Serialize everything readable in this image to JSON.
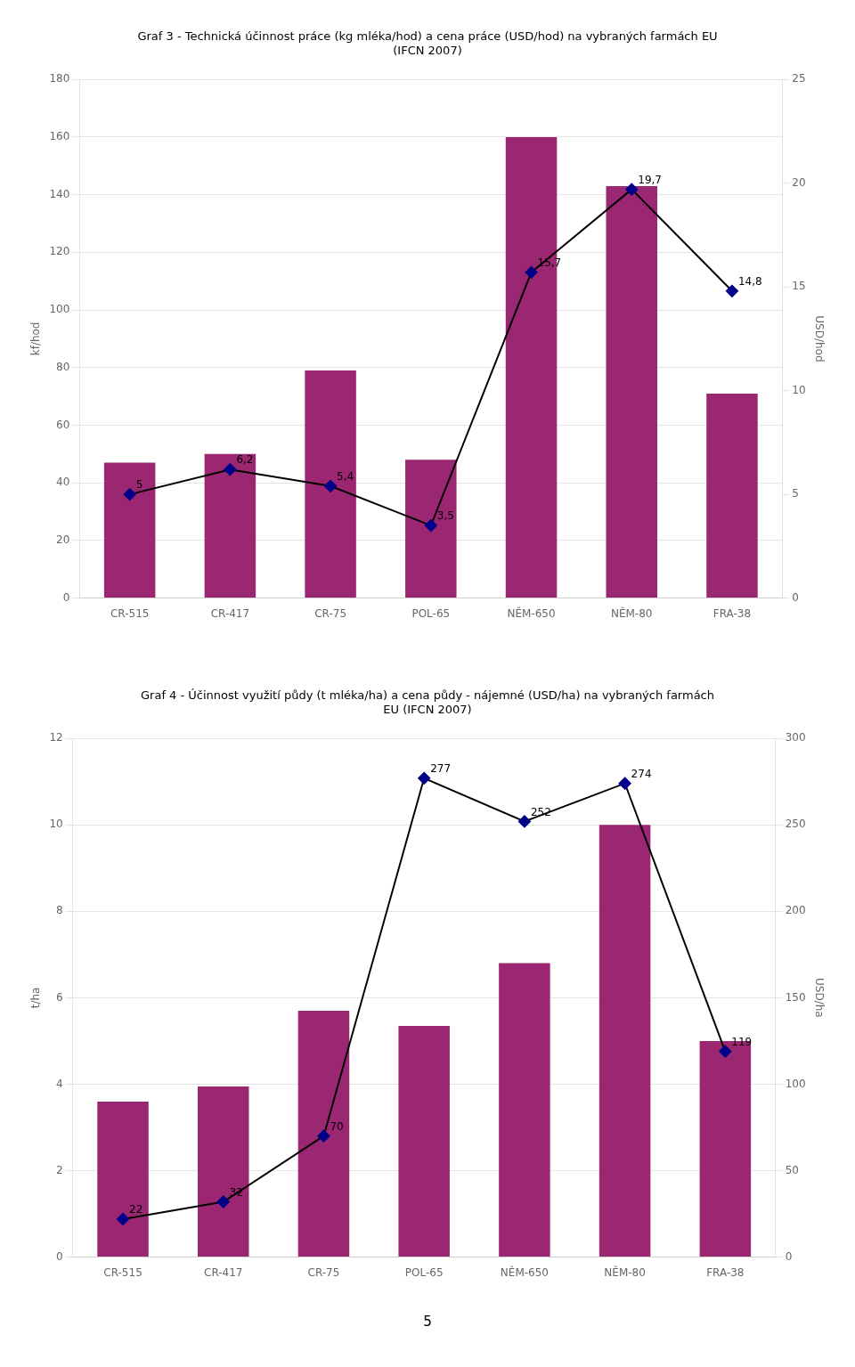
{
  "chart_data": [
    {
      "type": "bar",
      "title": "Graf 3 - Technická účinnost práce (kg mléka/hod) a cena práce (USD/hod) na vybraných farmách EU\n(IFCN 2007)",
      "categories": [
        "CR-515",
        "CR-417",
        "CR-75",
        "POL-65",
        "NĚM-650",
        "NĚM-80",
        "FRA-38"
      ],
      "ylabel": "kf/hod",
      "y2label": "USD/hod",
      "ylim": [
        0,
        180
      ],
      "yticks": [
        0,
        20,
        40,
        60,
        80,
        100,
        120,
        140,
        160,
        180
      ],
      "y2lim": [
        0,
        25
      ],
      "y2ticks": [
        0,
        5,
        10,
        15,
        20,
        25
      ],
      "grid": true,
      "series": [
        {
          "type": "bar",
          "color": "#9B2671",
          "values": [
            47,
            50,
            79,
            48,
            160,
            143,
            71
          ]
        },
        {
          "type": "line",
          "axis": "y2",
          "color": "#000000",
          "colors": [
            "#00008B",
            "#00008B",
            "#00008B",
            "#00008B",
            "#00008B",
            "#00008B",
            "#00008B"
          ],
          "marker": "diamond",
          "data_labels": true,
          "values": [
            5.0,
            6.2,
            5.4,
            3.5,
            15.7,
            19.7,
            14.8
          ],
          "value_labels": [
            "5",
            "6,2",
            "5,4",
            "3,5",
            "15,7",
            "19,7",
            "14,8"
          ]
        }
      ]
    },
    {
      "type": "bar",
      "title": "Graf 4 - Účinnost využití půdy (t mléka/ha) a cena půdy - nájemné (USD/ha) na vybraných farmách\nEU (IFCN 2007)",
      "categories": [
        "CR-515",
        "CR-417",
        "CR-75",
        "POL-65",
        "NĚM-650",
        "NĚM-80",
        "FRA-38"
      ],
      "ylabel": "t/ha",
      "y2label": "USD/ha",
      "ylim": [
        0,
        12
      ],
      "yticks": [
        0,
        2,
        4,
        6,
        8,
        10,
        12
      ],
      "y2lim": [
        0,
        300
      ],
      "y2ticks": [
        0,
        50,
        100,
        150,
        200,
        250,
        300
      ],
      "grid": true,
      "series": [
        {
          "type": "bar",
          "color": "#9B2671",
          "values": [
            3.6,
            3.95,
            5.7,
            5.35,
            6.8,
            10.0,
            5.0
          ]
        },
        {
          "type": "line",
          "axis": "y2",
          "color": "#000000",
          "colors": [
            "#00008B",
            "#00008B",
            "#00008B",
            "#00008B",
            "#00008B",
            "#00008B",
            "#00008B"
          ],
          "marker": "diamond",
          "data_labels": true,
          "values": [
            22,
            32,
            70,
            277,
            252,
            274,
            119
          ],
          "value_labels": [
            "22",
            "32",
            "70",
            "277",
            "252",
            "274",
            "119"
          ]
        }
      ]
    }
  ],
  "annotations": [
    "5"
  ]
}
